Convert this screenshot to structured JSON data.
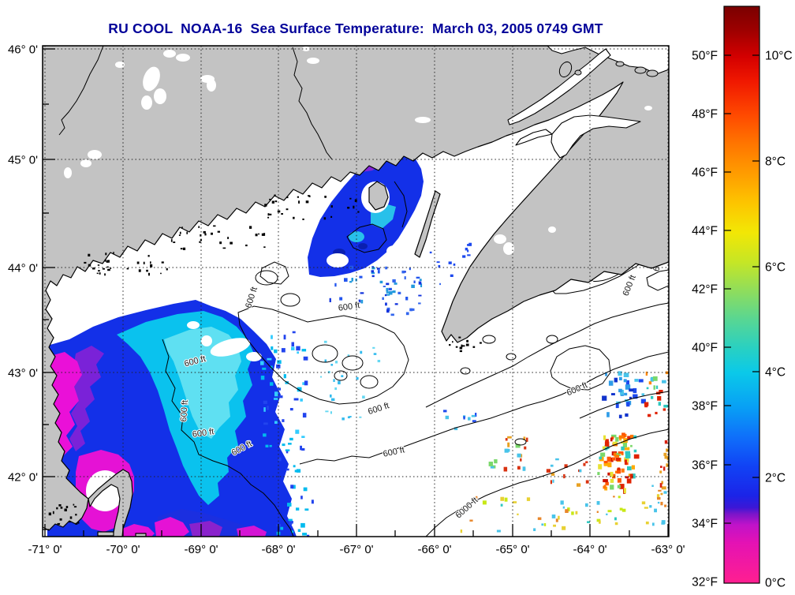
{
  "header": {
    "title": "RU COOL  NOAA-16  Sea Surface Temperature:  March 03, 2005 0749 GMT",
    "title_color": "#000099"
  },
  "map": {
    "region": "Gulf of Maine / Bay of Fundy / Nova Scotia",
    "x_axis": {
      "labels": [
        "-71° 0'",
        "-70° 0'",
        "-69° 0'",
        "-68° 0'",
        "-67° 0'",
        "-66° 0'",
        "-65° 0'",
        "-64° 0'",
        "-63° 0'"
      ]
    },
    "y_axis": {
      "labels": [
        "46° 0'",
        "45° 0'",
        "44° 0'",
        "43° 0'",
        "42° 0'"
      ]
    },
    "contour_labels": [
      "600 ft",
      "600 ft",
      "600 ft",
      "600 ft",
      "600 ft",
      "600 ft",
      "600 ft",
      "600 ft",
      "600 ft",
      "600 ft",
      "600 ft",
      "600 ft",
      "6000 ft"
    ],
    "grid_style": "dotted",
    "colors": {
      "land": "#c3c3c3",
      "ocean_no_data": "#ffffff",
      "coastline": "#000000",
      "cold_magenta": "#e512d5",
      "cold_blue": "#1330e8",
      "cool_cyan": "#0ac2ee",
      "warm_orange": "#ff6600",
      "warm_red": "#d92211"
    }
  },
  "colorbar": {
    "f_labels": [
      "50°F",
      "48°F",
      "46°F",
      "44°F",
      "42°F",
      "40°F",
      "38°F",
      "36°F",
      "34°F",
      "32°F"
    ],
    "c_labels": [
      "10°C",
      "8°C",
      "6°C",
      "4°C",
      "2°C",
      "0°C"
    ],
    "range_f": [
      32,
      51.7
    ],
    "range_c": [
      0,
      11
    ],
    "palette_bottom_to_top": [
      "#ff1f90",
      "#e412b4",
      "#c013c9",
      "#7a15c9",
      "#1b24e8",
      "#1143f5",
      "#0f70fa",
      "#089ff5",
      "#0bc9e9",
      "#27d0c4",
      "#8edd5d",
      "#c6e625",
      "#f2e705",
      "#fdc500",
      "#ff9d00",
      "#ff4a00",
      "#d40000",
      "#7a0000"
    ]
  }
}
